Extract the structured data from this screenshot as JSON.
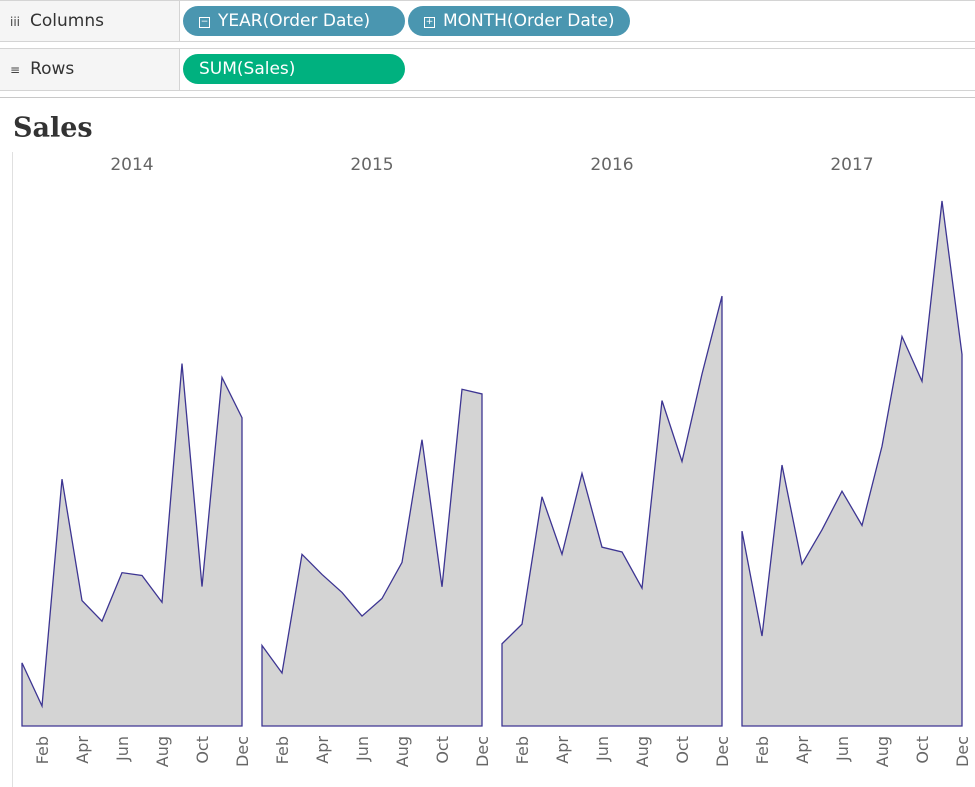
{
  "shelves": {
    "columns": {
      "label": "Columns",
      "pills": [
        "YEAR(Order Date)",
        "MONTH(Order Date)"
      ]
    },
    "rows": {
      "label": "Rows",
      "pills": [
        "SUM(Sales)"
      ]
    }
  },
  "chart_data": {
    "type": "area",
    "title": "Sales",
    "categories": [
      null,
      "Feb",
      null,
      "Apr",
      null,
      "Jun",
      null,
      "Aug",
      null,
      "Oct",
      null,
      "Dec"
    ],
    "series": [
      {
        "name": "2014",
        "color": "#3d3592",
        "values": [
          14236,
          4520,
          55691,
          28295,
          23648,
          34595,
          33946,
          27909,
          81777,
          31453,
          78629,
          69546
        ]
      },
      {
        "name": "2015",
        "color": "#3d3592",
        "values": [
          18174,
          11951,
          38726,
          34195,
          30132,
          24797,
          28765,
          36898,
          64596,
          31405,
          75973,
          74920
        ]
      },
      {
        "name": "2016",
        "color": "#3d3592",
        "values": [
          18542,
          22979,
          51716,
          38750,
          56988,
          40345,
          39262,
          31115,
          73410,
          59688,
          79412,
          96999
        ]
      },
      {
        "name": "2017",
        "color": "#3d3592",
        "values": [
          43971,
          20301,
          58872,
          36522,
          44261,
          52982,
          45264,
          63121,
          87867,
          77777,
          118448,
          83829
        ]
      }
    ],
    "fill": "#d4d4d4"
  }
}
